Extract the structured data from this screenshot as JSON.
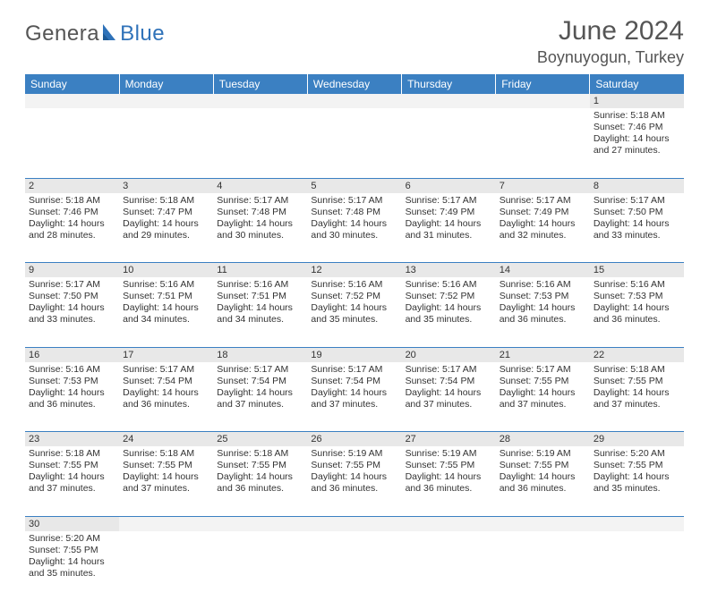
{
  "logo": {
    "text1": "Genera",
    "text2": "Blue"
  },
  "title": "June 2024",
  "subtitle": "Boynuyogun, Turkey",
  "colors": {
    "header_bg": "#3b80c2",
    "header_text": "#ffffff",
    "daynum_bg": "#e8e8e8",
    "empty_bg": "#f3f3f3",
    "rule": "#3b80c2",
    "title_color": "#555555",
    "logo_accent": "#2f72b9",
    "text": "#333333",
    "background": "#ffffff"
  },
  "fonts": {
    "title_size": 30,
    "subtitle_size": 18,
    "header_size": 12,
    "cell_size": 10.5
  },
  "weekdays": [
    "Sunday",
    "Monday",
    "Tuesday",
    "Wednesday",
    "Thursday",
    "Friday",
    "Saturday"
  ],
  "days": {
    "1": {
      "sunrise": "5:18 AM",
      "sunset": "7:46 PM",
      "daylight_h": 14,
      "daylight_m": 27
    },
    "2": {
      "sunrise": "5:18 AM",
      "sunset": "7:46 PM",
      "daylight_h": 14,
      "daylight_m": 28
    },
    "3": {
      "sunrise": "5:18 AM",
      "sunset": "7:47 PM",
      "daylight_h": 14,
      "daylight_m": 29
    },
    "4": {
      "sunrise": "5:17 AM",
      "sunset": "7:48 PM",
      "daylight_h": 14,
      "daylight_m": 30
    },
    "5": {
      "sunrise": "5:17 AM",
      "sunset": "7:48 PM",
      "daylight_h": 14,
      "daylight_m": 30
    },
    "6": {
      "sunrise": "5:17 AM",
      "sunset": "7:49 PM",
      "daylight_h": 14,
      "daylight_m": 31
    },
    "7": {
      "sunrise": "5:17 AM",
      "sunset": "7:49 PM",
      "daylight_h": 14,
      "daylight_m": 32
    },
    "8": {
      "sunrise": "5:17 AM",
      "sunset": "7:50 PM",
      "daylight_h": 14,
      "daylight_m": 33
    },
    "9": {
      "sunrise": "5:17 AM",
      "sunset": "7:50 PM",
      "daylight_h": 14,
      "daylight_m": 33
    },
    "10": {
      "sunrise": "5:16 AM",
      "sunset": "7:51 PM",
      "daylight_h": 14,
      "daylight_m": 34
    },
    "11": {
      "sunrise": "5:16 AM",
      "sunset": "7:51 PM",
      "daylight_h": 14,
      "daylight_m": 34
    },
    "12": {
      "sunrise": "5:16 AM",
      "sunset": "7:52 PM",
      "daylight_h": 14,
      "daylight_m": 35
    },
    "13": {
      "sunrise": "5:16 AM",
      "sunset": "7:52 PM",
      "daylight_h": 14,
      "daylight_m": 35
    },
    "14": {
      "sunrise": "5:16 AM",
      "sunset": "7:53 PM",
      "daylight_h": 14,
      "daylight_m": 36
    },
    "15": {
      "sunrise": "5:16 AM",
      "sunset": "7:53 PM",
      "daylight_h": 14,
      "daylight_m": 36
    },
    "16": {
      "sunrise": "5:16 AM",
      "sunset": "7:53 PM",
      "daylight_h": 14,
      "daylight_m": 36
    },
    "17": {
      "sunrise": "5:17 AM",
      "sunset": "7:54 PM",
      "daylight_h": 14,
      "daylight_m": 36
    },
    "18": {
      "sunrise": "5:17 AM",
      "sunset": "7:54 PM",
      "daylight_h": 14,
      "daylight_m": 37
    },
    "19": {
      "sunrise": "5:17 AM",
      "sunset": "7:54 PM",
      "daylight_h": 14,
      "daylight_m": 37
    },
    "20": {
      "sunrise": "5:17 AM",
      "sunset": "7:54 PM",
      "daylight_h": 14,
      "daylight_m": 37
    },
    "21": {
      "sunrise": "5:17 AM",
      "sunset": "7:55 PM",
      "daylight_h": 14,
      "daylight_m": 37
    },
    "22": {
      "sunrise": "5:18 AM",
      "sunset": "7:55 PM",
      "daylight_h": 14,
      "daylight_m": 37
    },
    "23": {
      "sunrise": "5:18 AM",
      "sunset": "7:55 PM",
      "daylight_h": 14,
      "daylight_m": 37
    },
    "24": {
      "sunrise": "5:18 AM",
      "sunset": "7:55 PM",
      "daylight_h": 14,
      "daylight_m": 37
    },
    "25": {
      "sunrise": "5:18 AM",
      "sunset": "7:55 PM",
      "daylight_h": 14,
      "daylight_m": 36
    },
    "26": {
      "sunrise": "5:19 AM",
      "sunset": "7:55 PM",
      "daylight_h": 14,
      "daylight_m": 36
    },
    "27": {
      "sunrise": "5:19 AM",
      "sunset": "7:55 PM",
      "daylight_h": 14,
      "daylight_m": 36
    },
    "28": {
      "sunrise": "5:19 AM",
      "sunset": "7:55 PM",
      "daylight_h": 14,
      "daylight_m": 36
    },
    "29": {
      "sunrise": "5:20 AM",
      "sunset": "7:55 PM",
      "daylight_h": 14,
      "daylight_m": 35
    },
    "30": {
      "sunrise": "5:20 AM",
      "sunset": "7:55 PM",
      "daylight_h": 14,
      "daylight_m": 35
    }
  },
  "grid": [
    [
      null,
      null,
      null,
      null,
      null,
      null,
      1
    ],
    [
      2,
      3,
      4,
      5,
      6,
      7,
      8
    ],
    [
      9,
      10,
      11,
      12,
      13,
      14,
      15
    ],
    [
      16,
      17,
      18,
      19,
      20,
      21,
      22
    ],
    [
      23,
      24,
      25,
      26,
      27,
      28,
      29
    ],
    [
      30,
      null,
      null,
      null,
      null,
      null,
      null
    ]
  ]
}
